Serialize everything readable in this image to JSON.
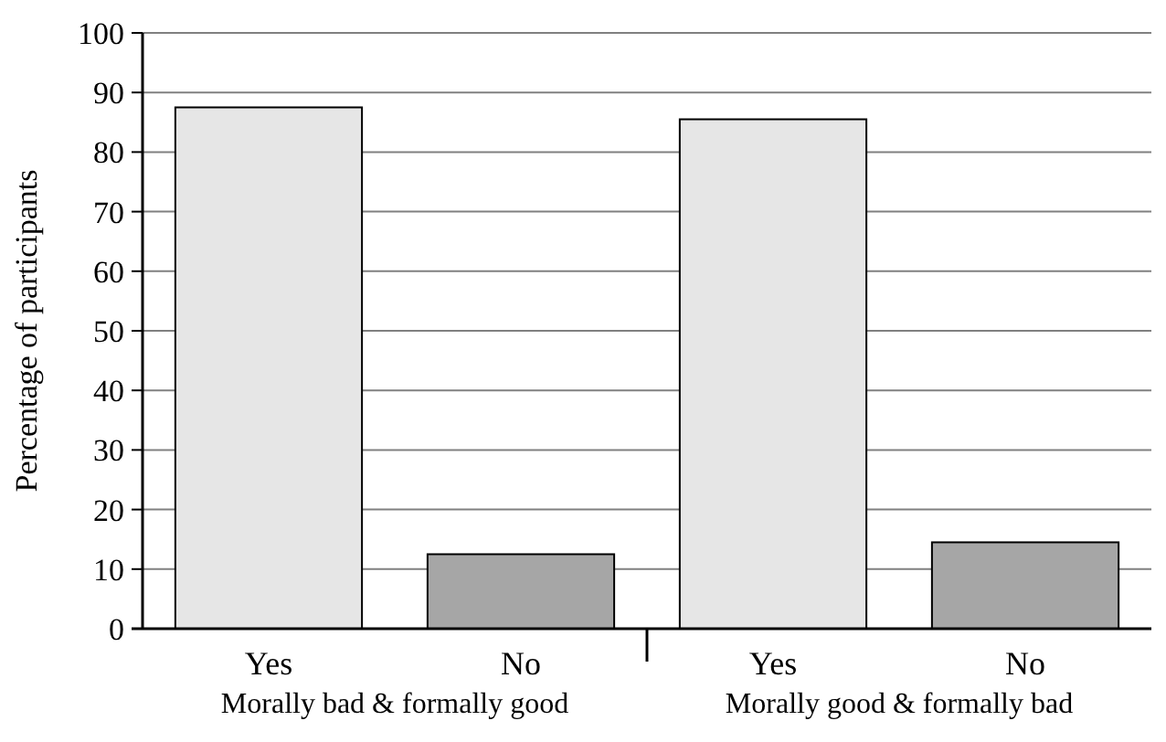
{
  "chart_data": {
    "type": "bar",
    "ylabel": "Percentage of participants",
    "categories": [
      "Yes",
      "No",
      "Yes",
      "No"
    ],
    "values": [
      87.5,
      12.5,
      85.5,
      14.5
    ],
    "colors": [
      "#e6e6e6",
      "#a6a6a6",
      "#e6e6e6",
      "#a6a6a6"
    ],
    "ylim": [
      0,
      100
    ],
    "yticks": [
      0,
      10,
      20,
      30,
      40,
      50,
      60,
      70,
      80,
      90,
      100
    ],
    "grid": "y",
    "annotations": [
      "Morally bad & formally good",
      "Morally good & formally bad"
    ]
  }
}
